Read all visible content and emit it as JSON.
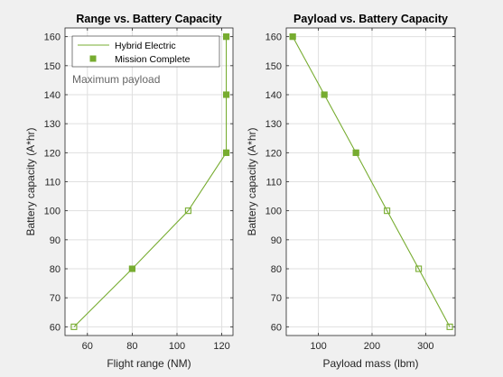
{
  "chart_data": [
    {
      "type": "line",
      "title": "Range vs. Battery Capacity",
      "xlabel": "Flight range (NM)",
      "ylabel": "Battery capacity (A*hr)",
      "xlim": [
        50,
        125
      ],
      "ylim": [
        57,
        163
      ],
      "xticks": [
        "60",
        "80",
        "100",
        "120"
      ],
      "xtick_values": [
        60,
        80,
        100,
        120
      ],
      "yticks": [
        "60",
        "70",
        "80",
        "90",
        "100",
        "110",
        "120",
        "130",
        "140",
        "150",
        "160"
      ],
      "ytick_values": [
        60,
        70,
        80,
        90,
        100,
        110,
        120,
        130,
        140,
        150,
        160
      ],
      "grid": true,
      "legend": {
        "placement": "top-left",
        "entries": [
          "Hybrid Electric",
          "Mission Complete"
        ]
      },
      "annotation": "Maximum payload",
      "series": [
        {
          "name": "Hybrid Electric",
          "x": [
            54,
            80,
            105,
            122,
            122,
            122
          ],
          "y": [
            60,
            80,
            100,
            120,
            140,
            160
          ]
        }
      ],
      "mission_complete": {
        "x": [
          80,
          122,
          122,
          122
        ],
        "y": [
          80,
          120,
          140,
          160
        ]
      },
      "colors": {
        "line": "#77ac30"
      }
    },
    {
      "type": "line",
      "title": "Payload vs. Battery Capacity",
      "xlabel": "Payload mass (lbm)",
      "ylabel": "Battery capacity (A*hr)",
      "xlim": [
        40,
        355
      ],
      "ylim": [
        57,
        163
      ],
      "xticks": [
        "100",
        "200",
        "300"
      ],
      "xtick_values": [
        100,
        200,
        300
      ],
      "yticks": [
        "60",
        "70",
        "80",
        "90",
        "100",
        "110",
        "120",
        "130",
        "140",
        "150",
        "160"
      ],
      "ytick_values": [
        60,
        70,
        80,
        90,
        100,
        110,
        120,
        130,
        140,
        150,
        160
      ],
      "grid": true,
      "series": [
        {
          "name": "Hybrid Electric",
          "x": [
            345,
            287,
            228,
            170,
            111,
            52
          ],
          "y": [
            60,
            80,
            100,
            120,
            140,
            160
          ]
        }
      ],
      "mission_complete": {
        "x": [
          170,
          111,
          52
        ],
        "y": [
          120,
          140,
          160
        ]
      },
      "colors": {
        "line": "#77ac30"
      }
    }
  ]
}
